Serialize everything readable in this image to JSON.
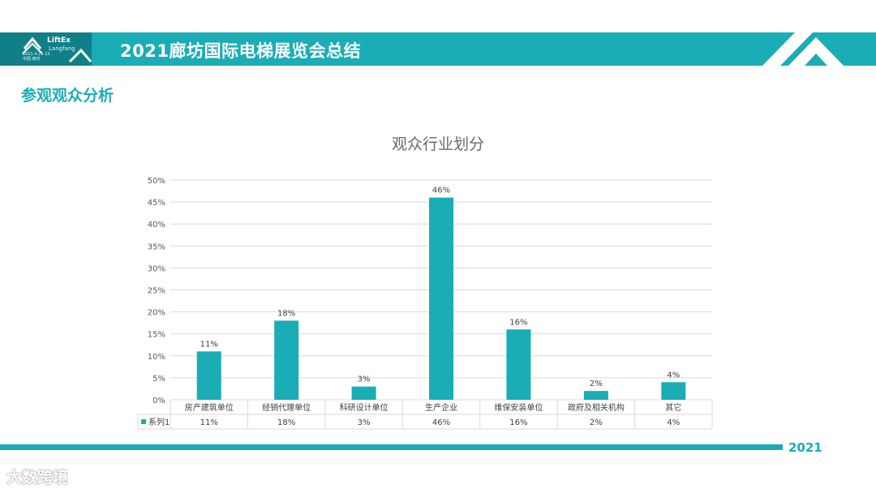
{
  "header": {
    "title": "2021廊坊国际电梯展览会总结",
    "logo_line1": "LiftEx",
    "logo_line2": "Langfang",
    "logo_sub": "2021.4.21-23 中国·廊坊"
  },
  "section": {
    "title": "参观观众分析"
  },
  "chart_data": {
    "type": "bar",
    "title": "观众行业划分",
    "categories": [
      "房产建筑单位",
      "经销代理单位",
      "科研设计单位",
      "生产企业",
      "维保安装单位",
      "政府及相关机构",
      "其它"
    ],
    "series": [
      {
        "name": "系列1",
        "values": [
          11,
          18,
          3,
          46,
          16,
          2,
          4
        ],
        "labels": [
          "11%",
          "18%",
          "3%",
          "46%",
          "16%",
          "2%",
          "4%"
        ]
      }
    ],
    "yticks": [
      "0%",
      "5%",
      "10%",
      "15%",
      "20%",
      "25%",
      "30%",
      "35%",
      "40%",
      "45%",
      "50%"
    ],
    "ylim": [
      0,
      50
    ],
    "grid": true,
    "legend": "data-table",
    "color": "#1aadb6"
  },
  "footer": {
    "year": "2021",
    "watermark": "大数跨境"
  },
  "colors": {
    "accent": "#1aadb6",
    "accent_dark": "#107f88"
  }
}
